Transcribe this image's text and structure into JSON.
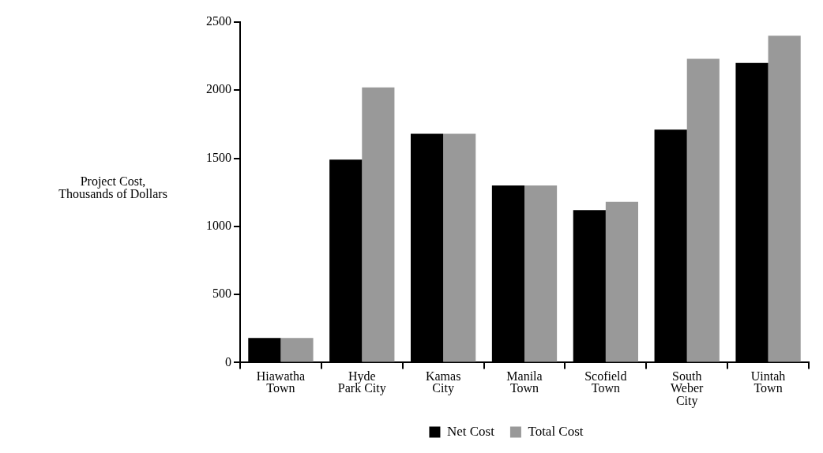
{
  "chart_data": {
    "type": "bar",
    "ylabel": "Project Cost,\nThousands of Dollars",
    "categories": [
      "Hiawatha\nTown",
      "Hyde\nPark City",
      "Kamas\nCity",
      "Manila\nTown",
      "Scofield\nTown",
      "South\nWeber\nCity",
      "Uintah\nTown"
    ],
    "series": [
      {
        "name": "Net Cost",
        "color": "#000000",
        "values": [
          180,
          1490,
          1680,
          1300,
          1120,
          1710,
          2200
        ]
      },
      {
        "name": "Total Cost",
        "color": "#999999",
        "values": [
          180,
          2020,
          1680,
          1300,
          1180,
          2230,
          2400
        ]
      }
    ],
    "ylim": [
      0,
      2500
    ],
    "yticks": [
      0,
      500,
      1000,
      1500,
      2000,
      2500
    ],
    "grid": false,
    "legend": "bottom"
  }
}
